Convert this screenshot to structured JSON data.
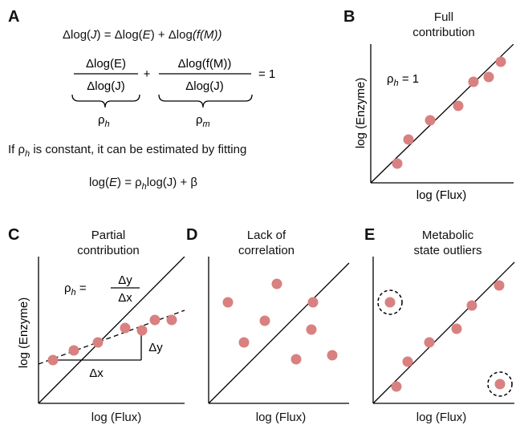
{
  "panels": {
    "A": {
      "letter": "A",
      "eq1_parts": [
        "Δlog(",
        "J",
        ") = Δlog(",
        "E",
        ") + Δlog",
        "(f(M))"
      ],
      "frac1_num": "Δlog(E)",
      "frac1_den": "Δlog(J)",
      "plus": "+",
      "frac2_num": "Δlog(f(M))",
      "frac2_den": "Δlog(J)",
      "equals_one": "= 1",
      "rho_h_label": "ρ",
      "rho_h_sub": "h",
      "rho_m_label": "ρ",
      "rho_m_sub": "m",
      "condition_pre": "If ρ",
      "condition_sub": "h",
      "condition_post": " is constant, it can be estimated by fitting",
      "fit_eq_pre": "log(",
      "fit_eq_E": "E",
      "fit_eq_mid": ") = ρ",
      "fit_eq_sub": "h",
      "fit_eq_post": "log(J) + β"
    },
    "B": {
      "letter": "B",
      "title_line1": "Full",
      "title_line2": "contribution",
      "ylabel": "log (Enzyme)",
      "xlabel": "log (Flux)",
      "annotation": "ρ",
      "annotation_sub": "h",
      "annotation_post": " = 1"
    },
    "C": {
      "letter": "C",
      "title_line1": "Partial",
      "title_line2": "contribution",
      "ylabel": "log (Enzyme)",
      "xlabel": "log (Flux)",
      "rho": "ρ",
      "rho_sub": "h",
      "rho_eq": " = ",
      "frac_num": "Δy",
      "frac_den": "Δx",
      "dx_label": "Δx",
      "dy_label": "Δy"
    },
    "D": {
      "letter": "D",
      "title_line1": "Lack of",
      "title_line2": "correlation",
      "xlabel": "log (Flux)"
    },
    "E": {
      "letter": "E",
      "title_line1": "Metabolic",
      "title_line2": "state outliers",
      "xlabel": "log (Flux)"
    }
  },
  "colors": {
    "dot": "#d98080",
    "line": "#000000"
  }
}
